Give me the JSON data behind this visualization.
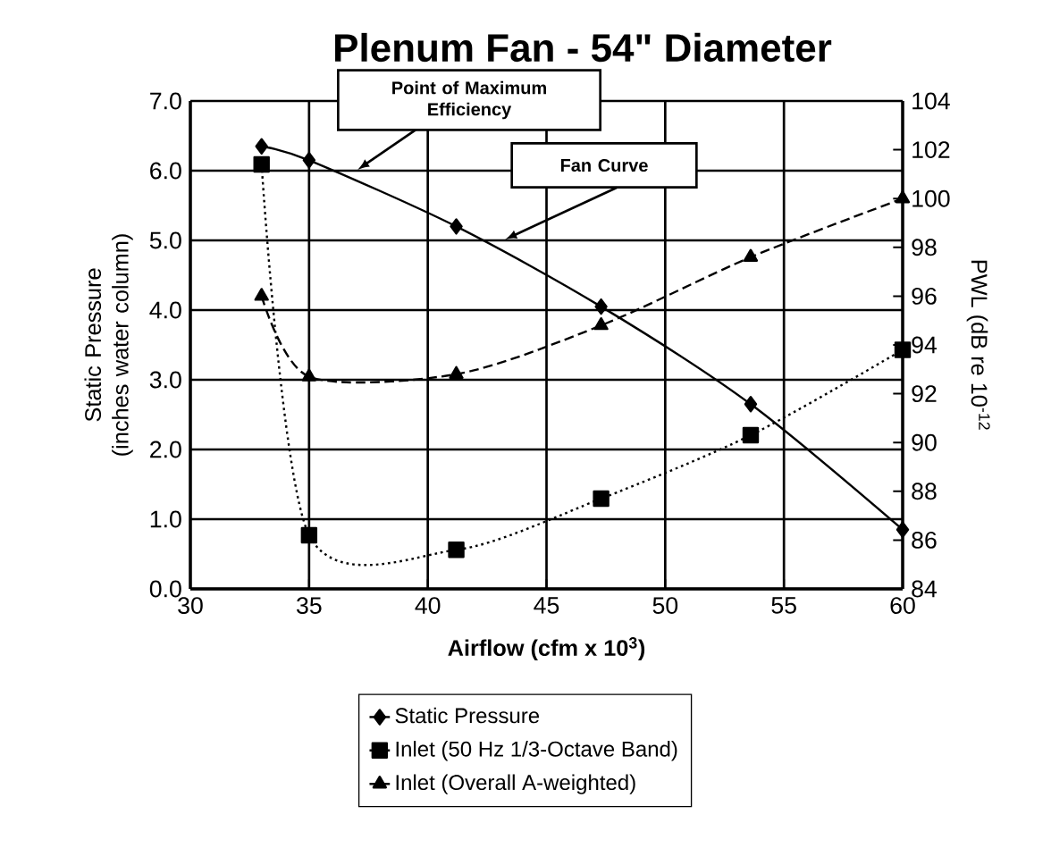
{
  "chart_data": {
    "type": "line",
    "title": "Plenum Fan - 54\" Diameter",
    "xlabel": "Airflow (cfm x 10$^{3}$)",
    "ylabel": "Static Pressure (inches water column)",
    "y2label": "PWL (dB re 10$^{-12}$",
    "x": [
      33,
      35,
      41.2,
      47.3,
      53.6,
      60
    ],
    "series": [
      {
        "name": "Static Pressure",
        "color": "#000000",
        "values": [
          6.35,
          6.15,
          5.2,
          4.05,
          2.65,
          0.85
        ],
        "marker": "diamond",
        "line_style": "solid"
      },
      {
        "name": "Inlet (50 Hz 1/3-Octave Band)",
        "color": "#000000",
        "axis": "y2",
        "values": [
          101.4,
          86.2,
          85.6,
          87.7,
          90.3,
          93.8
        ],
        "marker": "square",
        "line_style": "dotted"
      },
      {
        "name": "Inlet (Overall A-weighted)",
        "color": "#000000",
        "axis": "y2",
        "values": [
          96.0,
          92.7,
          92.8,
          94.8,
          97.6,
          100.0
        ],
        "marker": "triangle",
        "line_style": "dashed"
      }
    ],
    "xlim": [
      30,
      60
    ],
    "xticks": [
      30,
      35,
      40,
      45,
      50,
      55,
      60
    ],
    "ylim": [
      0,
      7
    ],
    "yticks": [
      {
        "value": 0,
        "label": "0.0"
      },
      {
        "value": 1,
        "label": "1.0"
      },
      {
        "value": 2,
        "label": "2.0"
      },
      {
        "value": 3,
        "label": "3.0"
      },
      {
        "value": 4,
        "label": "4.0"
      },
      {
        "value": 5,
        "label": "5.0"
      },
      {
        "value": 6,
        "label": "6.0"
      },
      {
        "value": 7,
        "label": "7.0"
      }
    ],
    "y2lim": [
      84,
      104
    ],
    "y2ticks": [
      84,
      86,
      88,
      90,
      92,
      94,
      96,
      98,
      100,
      102,
      104
    ],
    "annotations": [
      "Point of Maximum Efficiency",
      "Fan Curve"
    ],
    "grid": true,
    "legend": "bottom"
  }
}
